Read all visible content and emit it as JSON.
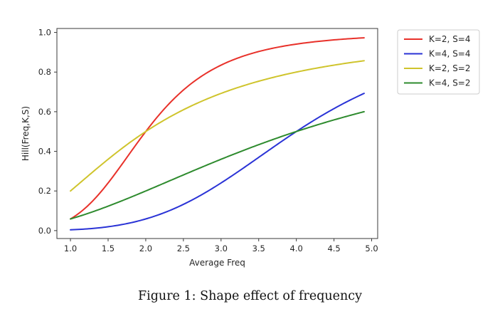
{
  "chart_data": {
    "type": "line",
    "title": "",
    "xlabel": "Average Freq",
    "ylabel": "Hill(Freq,K,S)",
    "xlim": [
      0.82,
      5.08
    ],
    "ylim": [
      -0.04,
      1.02
    ],
    "xticks": [
      1.0,
      1.5,
      2.0,
      2.5,
      3.0,
      3.5,
      4.0,
      4.5,
      5.0
    ],
    "xtick_labels": [
      "1.0",
      "1.5",
      "2.0",
      "2.5",
      "3.0",
      "3.5",
      "4.0",
      "4.5",
      "5.0"
    ],
    "yticks": [
      0.0,
      0.2,
      0.4,
      0.6,
      0.8,
      1.0
    ],
    "ytick_labels": [
      "0.0",
      "0.2",
      "0.4",
      "0.6",
      "0.8",
      "1.0"
    ],
    "grid": false,
    "legend_position": "outside-right-top",
    "series": [
      {
        "name": "K=2, S=4",
        "color": "#e8312a",
        "K": 2,
        "S": 4,
        "x": [
          1.0,
          1.25,
          1.5,
          1.75,
          2.0,
          2.25,
          2.5,
          2.75,
          3.0,
          3.25,
          3.5,
          3.75,
          4.0,
          4.25,
          4.5,
          4.75,
          4.9
        ],
        "y": [
          0.059,
          0.132,
          0.24,
          0.37,
          0.5,
          0.616,
          0.709,
          0.781,
          0.835,
          0.873,
          0.904,
          0.925,
          0.941,
          0.953,
          0.962,
          0.97,
          0.974
        ]
      },
      {
        "name": "K=4, S=4",
        "color": "#2a33d6",
        "K": 4,
        "S": 4,
        "x": [
          1.0,
          1.25,
          1.5,
          1.75,
          2.0,
          2.25,
          2.5,
          2.75,
          3.0,
          3.25,
          3.5,
          3.75,
          4.0,
          4.25,
          4.5,
          4.75,
          4.9
        ],
        "y": [
          0.004,
          0.009,
          0.019,
          0.035,
          0.059,
          0.091,
          0.132,
          0.183,
          0.24,
          0.304,
          0.37,
          0.436,
          0.5,
          0.56,
          0.616,
          0.665,
          0.692
        ]
      },
      {
        "name": "K=2, S=2",
        "color": "#cfc42c",
        "K": 2,
        "S": 2,
        "x": [
          1.0,
          1.25,
          1.5,
          1.75,
          2.0,
          2.25,
          2.5,
          2.75,
          3.0,
          3.25,
          3.5,
          3.75,
          4.0,
          4.25,
          4.5,
          4.75,
          4.9
        ],
        "y": [
          0.2,
          0.281,
          0.36,
          0.434,
          0.5,
          0.559,
          0.61,
          0.654,
          0.692,
          0.725,
          0.754,
          0.778,
          0.8,
          0.819,
          0.835,
          0.849,
          0.857
        ]
      },
      {
        "name": "K=4, S=2",
        "color": "#2e8b2e",
        "K": 4,
        "S": 2,
        "x": [
          1.0,
          1.25,
          1.5,
          1.75,
          2.0,
          2.25,
          2.5,
          2.75,
          3.0,
          3.25,
          3.5,
          3.75,
          4.0,
          4.25,
          4.5,
          4.75,
          4.9
        ],
        "y": [
          0.059,
          0.089,
          0.123,
          0.161,
          0.2,
          0.24,
          0.281,
          0.321,
          0.36,
          0.398,
          0.434,
          0.468,
          0.5,
          0.53,
          0.559,
          0.585,
          0.6
        ]
      }
    ]
  },
  "caption": "Figure 1: Shape effect of frequency"
}
